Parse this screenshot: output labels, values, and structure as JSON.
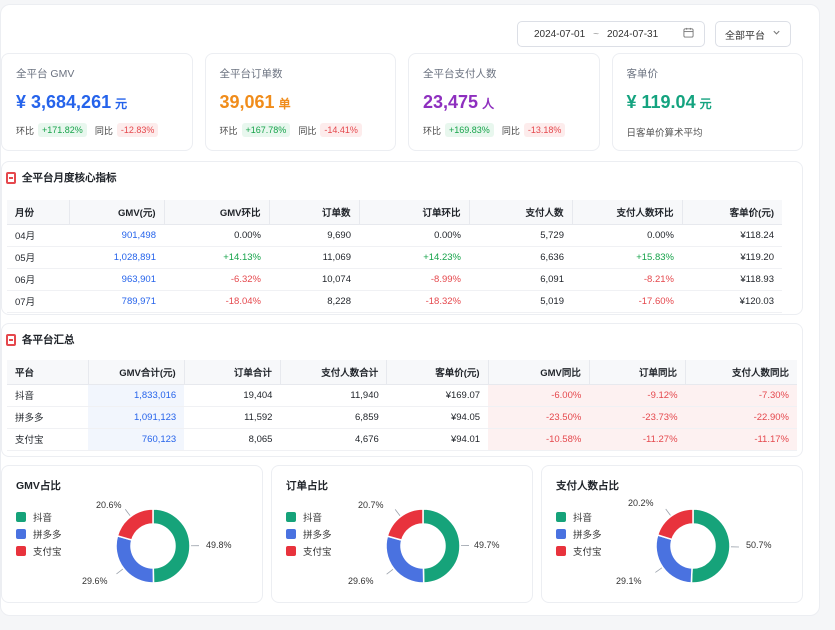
{
  "filters": {
    "date_start": "2024-07-01",
    "date_sep": "~",
    "date_end": "2024-07-31",
    "platform": "全部平台",
    "calendar_icon": "calendar-icon",
    "chevron_icon": "chevron-down-icon"
  },
  "kpis": [
    {
      "label": "全平台 GMV",
      "value": "¥ 3,684,261",
      "unit": "元",
      "color": "#2563eb",
      "mom_label": "环比",
      "mom": "+171.82%",
      "yoy_label": "同比",
      "yoy": "-12.83%"
    },
    {
      "label": "全平台订单数",
      "value": "39,061",
      "unit": "单",
      "color": "#f08c1a",
      "mom_label": "环比",
      "mom": "+167.78%",
      "yoy_label": "同比",
      "yoy": "-14.41%"
    },
    {
      "label": "全平台支付人数",
      "value": "23,475",
      "unit": "人",
      "color": "#8e2fbf",
      "mom_label": "环比",
      "mom": "+169.83%",
      "yoy_label": "同比",
      "yoy": "-13.18%"
    },
    {
      "label": "客单价",
      "value": "¥ 119.04",
      "unit": "元",
      "color": "#14a37f",
      "note": "日客单价算术平均"
    }
  ],
  "monthly": {
    "title": "全平台月度核心指标",
    "headers": [
      "月份",
      "GMV(元)",
      "GMV环比",
      "订单数",
      "订单环比",
      "支付人数",
      "支付人数环比",
      "客单价(元)"
    ],
    "rows": [
      [
        "04月",
        "901,498",
        "0.00%",
        "9,690",
        "0.00%",
        "5,729",
        "0.00%",
        "¥118.24"
      ],
      [
        "05月",
        "1,028,891",
        "+14.13%",
        "11,069",
        "+14.23%",
        "6,636",
        "+15.83%",
        "¥119.20"
      ],
      [
        "06月",
        "963,901",
        "-6.32%",
        "10,074",
        "-8.99%",
        "6,091",
        "-8.21%",
        "¥118.93"
      ],
      [
        "07月",
        "789,971",
        "-18.04%",
        "8,228",
        "-18.32%",
        "5,019",
        "-17.60%",
        "¥120.03"
      ]
    ]
  },
  "platforms": {
    "title": "各平台汇总",
    "headers": [
      "平台",
      "GMV合计(元)",
      "订单合计",
      "支付人数合计",
      "客单价(元)",
      "GMV同比",
      "订单同比",
      "支付人数同比"
    ],
    "rows": [
      [
        "抖音",
        "1,833,016",
        "19,404",
        "11,940",
        "¥169.07",
        "-6.00%",
        "-9.12%",
        "-7.30%"
      ],
      [
        "拼多多",
        "1,091,123",
        "11,592",
        "6,859",
        "¥94.05",
        "-23.50%",
        "-23.73%",
        "-22.90%"
      ],
      [
        "支付宝",
        "760,123",
        "8,065",
        "4,676",
        "¥94.01",
        "-10.58%",
        "-11.27%",
        "-11.17%"
      ]
    ]
  },
  "chart_data": [
    {
      "type": "pie",
      "title": "GMV占比",
      "categories": [
        "抖音",
        "拼多多",
        "支付宝"
      ],
      "values": [
        49.8,
        29.6,
        20.6
      ],
      "labels": [
        "49.8%",
        "29.6%",
        "20.6%"
      ],
      "colors": [
        "#16a37a",
        "#4a72e0",
        "#e8333d"
      ]
    },
    {
      "type": "pie",
      "title": "订单占比",
      "categories": [
        "抖音",
        "拼多多",
        "支付宝"
      ],
      "values": [
        49.7,
        29.6,
        20.7
      ],
      "labels": [
        "49.7%",
        "29.6%",
        "20.7%"
      ],
      "colors": [
        "#16a37a",
        "#4a72e0",
        "#e8333d"
      ]
    },
    {
      "type": "pie",
      "title": "支付人数占比",
      "categories": [
        "抖音",
        "拼多多",
        "支付宝"
      ],
      "values": [
        50.7,
        29.1,
        20.2
      ],
      "labels": [
        "50.7%",
        "29.1%",
        "20.2%"
      ],
      "colors": [
        "#16a37a",
        "#4a72e0",
        "#e8333d"
      ]
    }
  ]
}
